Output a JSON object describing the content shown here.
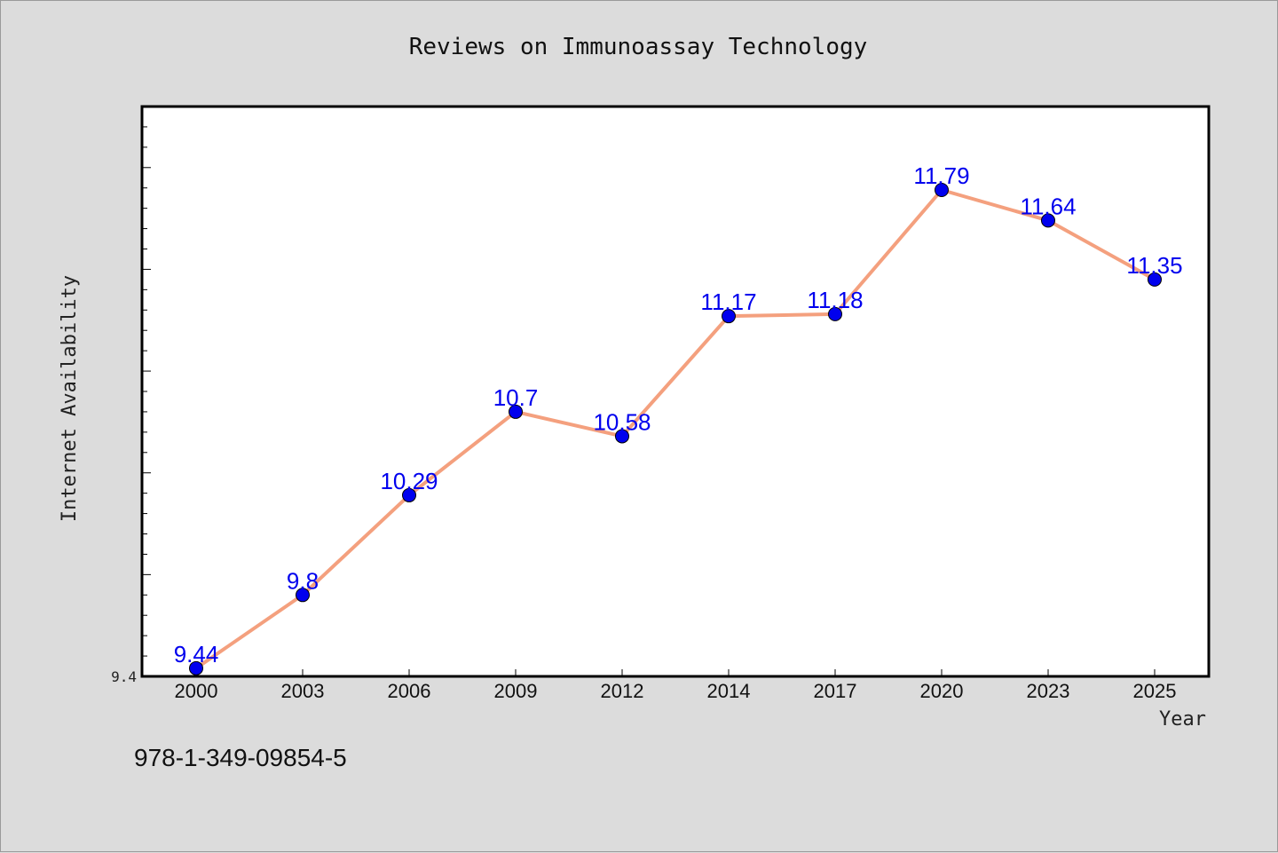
{
  "chart_data": {
    "type": "line",
    "title": "Reviews on Immunoassay Technology",
    "xlabel": "Year",
    "ylabel": "Internet Availability",
    "categories": [
      "2000",
      "2003",
      "2006",
      "2009",
      "2012",
      "2014",
      "2017",
      "2020",
      "2023",
      "2025"
    ],
    "series": [
      {
        "values": [
          9.44,
          9.8,
          10.29,
          10.7,
          10.58,
          11.17,
          11.18,
          11.79,
          11.64,
          11.35
        ],
        "labels": [
          "9.44",
          "9.8",
          "10.29",
          "10.7",
          "10.58",
          "11.17",
          "11.18",
          "11.79",
          "11.64",
          "11.35"
        ],
        "line_color": "#f4a07e",
        "marker_color": "#0000ee"
      }
    ],
    "ylim": [
      9.4,
      12.2
    ],
    "yticks_labeled": [
      "9.4"
    ],
    "grid": false,
    "legend": "none"
  },
  "footer": {
    "isbn": "978-1-349-09854-5"
  }
}
